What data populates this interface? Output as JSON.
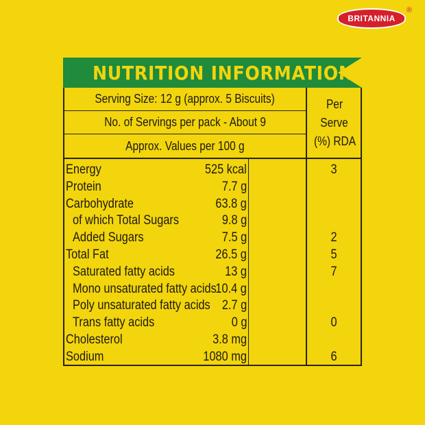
{
  "brand": {
    "name": "BRITANNIA",
    "reg": "®"
  },
  "title": "NUTRITION INFORMATION",
  "header": {
    "serving_size": "Serving Size: 12 g (approx. 5 Biscuits)",
    "servings_per_pack": "No. of Servings per pack - About 9",
    "values_per": "Approx. Values per 100 g",
    "rda_line1": "Per",
    "rda_line2": "Serve",
    "rda_line3": "(%) RDA"
  },
  "rows": [
    {
      "name": "Energy",
      "value": "525 kcal",
      "rda": "3",
      "indent": false
    },
    {
      "name": "Protein",
      "value": "7.7 g",
      "rda": "",
      "indent": false
    },
    {
      "name": "Carbohydrate",
      "value": "63.8 g",
      "rda": "",
      "indent": false
    },
    {
      "name": "of which Total Sugars",
      "value": "9.8 g",
      "rda": "",
      "indent": true
    },
    {
      "name": "Added Sugars",
      "value": "7.5 g",
      "rda": "2",
      "indent": true
    },
    {
      "name": "Total Fat",
      "value": "26.5 g",
      "rda": "5",
      "indent": false
    },
    {
      "name": "Saturated fatty acids",
      "value": "13 g",
      "rda": "7",
      "indent": true
    },
    {
      "name": "Mono unsaturated fatty acids",
      "value": "10.4 g",
      "rda": "",
      "indent": true
    },
    {
      "name": "Poly unsaturated fatty acids",
      "value": "2.7 g",
      "rda": "",
      "indent": true
    },
    {
      "name": "Trans fatty acids",
      "value": "0 g",
      "rda": "0",
      "indent": true
    },
    {
      "name": "Cholesterol",
      "value": "3.8 mg",
      "rda": "",
      "indent": false
    },
    {
      "name": "Sodium",
      "value": "1080 mg",
      "rda": "6",
      "indent": false
    }
  ],
  "colors": {
    "background": "#f2d50c",
    "banner": "#1f8b3b",
    "logo": "#d4202b"
  }
}
